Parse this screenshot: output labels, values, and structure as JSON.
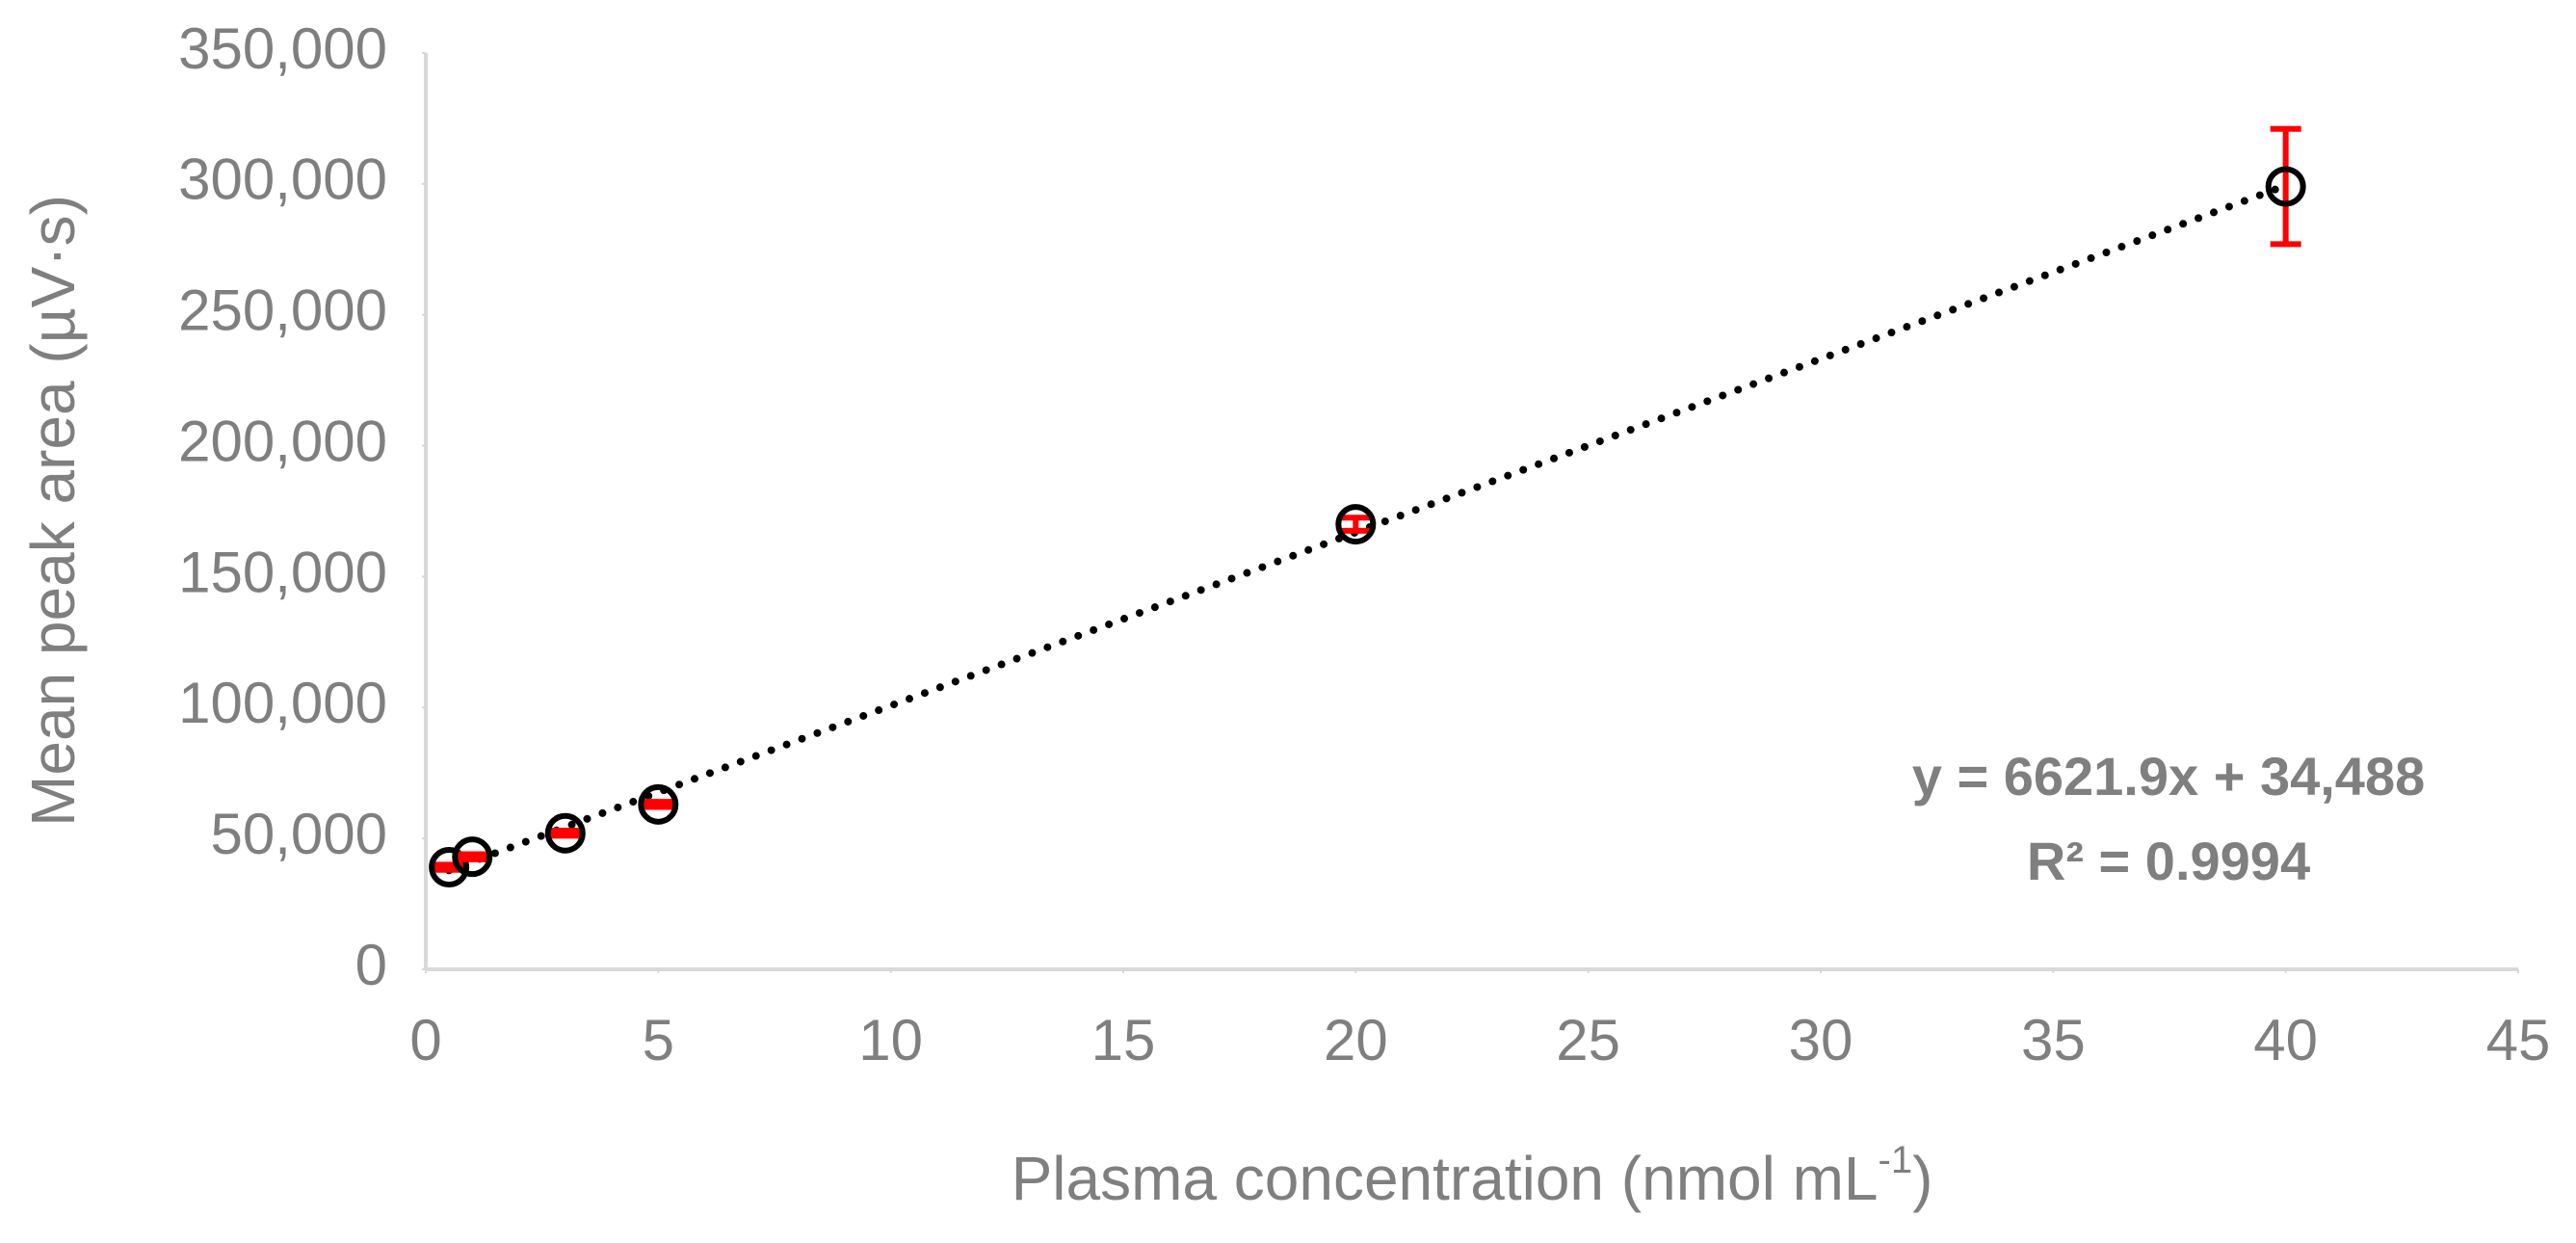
{
  "chart_data": {
    "type": "scatter",
    "x_label": "Plasma concentration (nmol mL",
    "x_label_sup": "-1",
    "x_label_end": ")",
    "y_label": "Mean peak area (µV·s)",
    "x": [
      0.5,
      1,
      3,
      5,
      20,
      40
    ],
    "values": [
      39000,
      43000,
      52000,
      63000,
      170000,
      299000
    ],
    "errors": [
      1000,
      1000,
      1000,
      1000,
      2500,
      22000
    ],
    "marker_color": "#000000",
    "error_color": "#ff0000",
    "trendline": {
      "slope": 6621.9,
      "intercept": 34488,
      "color": "#000000",
      "equation": "y = 6621.9x + 34,488",
      "r_squared": "R² = 0.9994"
    },
    "xlim": [
      0,
      45
    ],
    "xticks": [
      0,
      5,
      10,
      15,
      20,
      25,
      30,
      35,
      40,
      45
    ],
    "ylim": [
      0,
      350000
    ],
    "yticks": [
      0,
      {
        "value": 50000,
        "label": "50,000"
      },
      {
        "value": 100000,
        "label": "100,000"
      },
      {
        "value": 150000,
        "label": "150,000"
      },
      {
        "value": 200000,
        "label": "200,000"
      },
      {
        "value": 250000,
        "label": "250,000"
      },
      {
        "value": 300000,
        "label": "300,000"
      },
      {
        "value": 350000,
        "label": "350,000"
      }
    ],
    "grid": false
  }
}
